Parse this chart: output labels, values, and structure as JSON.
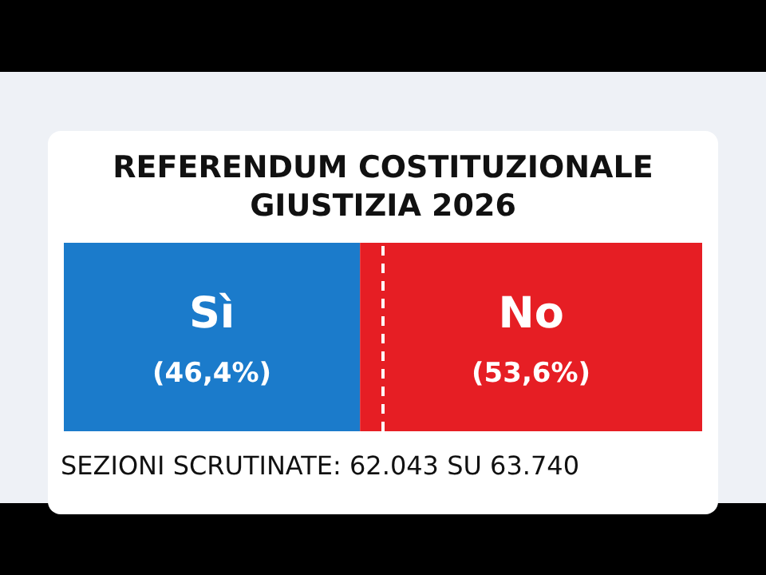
{
  "chart_data": {
    "type": "bar",
    "title": "REFERENDUM COSTITUZIONALE\nGIUSTIZIA 2026",
    "orientation": "horizontal",
    "stacked": true,
    "categories": [
      null
    ],
    "xlim": [
      0,
      100
    ],
    "series": [
      {
        "name": "Sì",
        "color": "#1b7bcb",
        "values": [
          46.4
        ],
        "value_labels": [
          "(46,4%)"
        ]
      },
      {
        "name": "No",
        "color": "#e61e24",
        "values": [
          53.6
        ],
        "value_labels": [
          "(53,6%)"
        ]
      }
    ],
    "ref_lines": [
      {
        "axis": "x",
        "value": 50,
        "color": "#ffffff",
        "line_style": "dashed"
      }
    ],
    "annotations": [
      "SEZIONI SCRUTINATE: 62.043 SU 63.740"
    ],
    "legend": false,
    "grid": false
  }
}
